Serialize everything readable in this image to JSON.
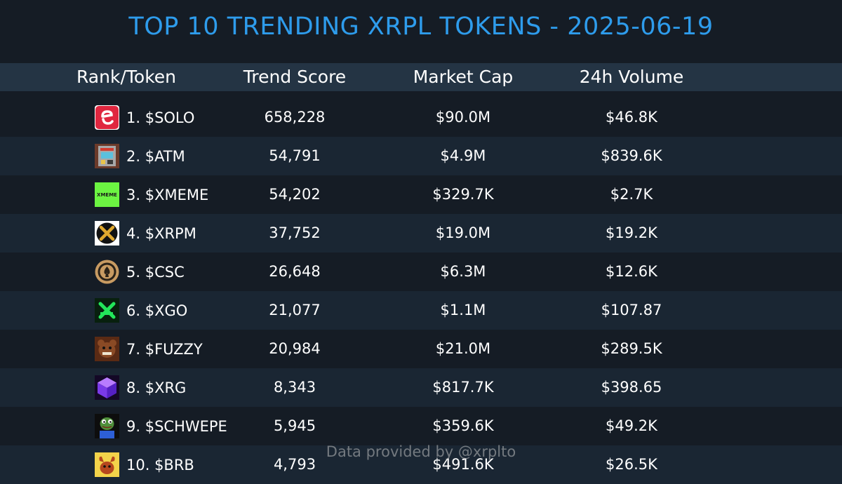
{
  "title": "TOP 10 TRENDING XRPL TOKENS - 2025-06-19",
  "headers": {
    "rank_token": "Rank/Token",
    "trend_score": "Trend Score",
    "market_cap": "Market Cap",
    "volume_24h": "24h Volume"
  },
  "rows": [
    {
      "name": "1. $SOLO",
      "score": "658,228",
      "cap": "$90.0M",
      "volume": "$46.8K",
      "icon": "solo-logo-icon"
    },
    {
      "name": "2. $ATM",
      "score": "54,791",
      "cap": "$4.9M",
      "volume": "$839.6K",
      "icon": "atm-machine-icon"
    },
    {
      "name": "3. $XMEME",
      "score": "54,202",
      "cap": "$329.7K",
      "volume": "$2.7K",
      "icon": "xmeme-logo-icon",
      "icon_text": "XMEME"
    },
    {
      "name": "4. $XRPM",
      "score": "37,752",
      "cap": "$19.0M",
      "volume": "$19.2K",
      "icon": "xrpm-logo-icon"
    },
    {
      "name": "5. $CSC",
      "score": "26,648",
      "cap": "$6.3M",
      "volume": "$12.6K",
      "icon": "casino-chip-icon"
    },
    {
      "name": "6. $XGO",
      "score": "21,077",
      "cap": "$1.1M",
      "volume": "$107.87",
      "icon": "xgo-logo-icon"
    },
    {
      "name": "7. $FUZZY",
      "score": "20,984",
      "cap": "$21.0M",
      "volume": "$289.5K",
      "icon": "fuzzy-bear-icon"
    },
    {
      "name": "8. $XRG",
      "score": "8,343",
      "cap": "$817.7K",
      "volume": "$398.65",
      "icon": "xrg-cube-icon"
    },
    {
      "name": "9. $SCHWEPE",
      "score": "5,945",
      "cap": "$359.6K",
      "volume": "$49.2K",
      "icon": "pepe-frog-icon"
    },
    {
      "name": "10. $BRB",
      "score": "4,793",
      "cap": "$491.6K",
      "volume": "$26.5K",
      "icon": "brb-mascot-icon"
    }
  ],
  "footer": "Data provided by @xrplto",
  "colors": {
    "background": "#151c25",
    "header_bg": "#243444",
    "row_alt_bg": "#1a2633",
    "title": "#2e9cec",
    "text": "#ffffff",
    "footer": "#8a8f96"
  }
}
